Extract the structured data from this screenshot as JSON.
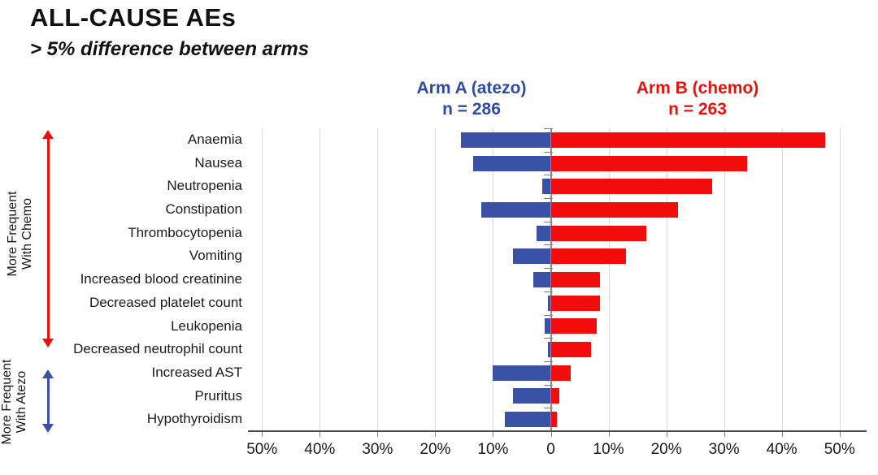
{
  "header": {
    "title": "ALL-CAUSE AEs",
    "subtitle": "> 5% difference between arms"
  },
  "legend": {
    "arm_a": {
      "label": "Arm A (atezo)",
      "n": "n = 286",
      "color": "#2E4CA5"
    },
    "arm_b": {
      "label": "Arm B (chemo)",
      "n": "n = 263",
      "color": "#E8120C"
    }
  },
  "annotations": {
    "chemo": {
      "line1": "More Frequent",
      "line2": "With Chemo",
      "arrow_color": "#E8120C"
    },
    "atezo": {
      "line1": "More Frequent",
      "line2": "With Atezo",
      "arrow_color": "#3A52A5"
    }
  },
  "axis": {
    "tick_labels": [
      "50%",
      "40%",
      "30%",
      "20%",
      "10%",
      "0",
      "10%",
      "20%",
      "30%",
      "40%",
      "50%"
    ],
    "tick_values": [
      -50,
      -40,
      -30,
      -20,
      -10,
      0,
      10,
      20,
      30,
      40,
      50
    ]
  },
  "colors": {
    "bar_atezo": "#3A52A5",
    "bar_chemo": "#F20D0D",
    "gridline": "#D9D9D9",
    "zero_line": "#8C8C8C",
    "axis_line": "#4D4D4D",
    "tick": "#7F7F7F"
  },
  "chart_data": {
    "type": "bar",
    "variant": "horizontal-diverging-tornado",
    "title": "ALL-CAUSE AEs",
    "subtitle": "> 5% difference between arms",
    "xlabel": "",
    "ylabel": "",
    "x_range_pct": [
      -50,
      50
    ],
    "x_tick_step_pct": 10,
    "grid": true,
    "legend_position": "top",
    "categories": [
      "Anaemia",
      "Nausea",
      "Neutropenia",
      "Constipation",
      "Thrombocytopenia",
      "Vomiting",
      "Increased blood creatinine",
      "Decreased platelet count",
      "Leukopenia",
      "Decreased neutrophil count",
      "Increased AST",
      "Pruritus",
      "Hypothyroidism"
    ],
    "series": [
      {
        "name": "Arm A (atezo), n = 286",
        "direction": "left",
        "color": "#3A52A5",
        "values": [
          15.5,
          13.5,
          1.5,
          12,
          2.5,
          6.5,
          3,
          0.5,
          1,
          0.5,
          10,
          6.5,
          8
        ]
      },
      {
        "name": "Arm B (chemo), n = 263",
        "direction": "right",
        "color": "#F20D0D",
        "values": [
          47.5,
          34,
          28,
          22,
          16.5,
          13,
          8.5,
          8.5,
          8,
          7,
          3.5,
          1.5,
          1
        ]
      }
    ],
    "group_annotations": [
      {
        "label": "More Frequent With Chemo",
        "rows": [
          0,
          9
        ],
        "arrow_color": "#E8120C"
      },
      {
        "label": "More Frequent With Atezo",
        "rows": [
          10,
          12
        ],
        "arrow_color": "#3A52A5"
      }
    ]
  }
}
